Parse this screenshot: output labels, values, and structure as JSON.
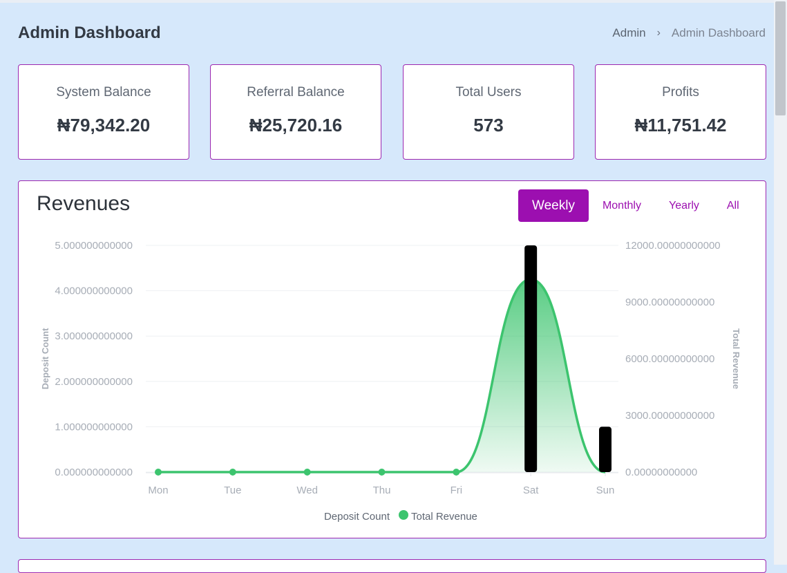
{
  "header": {
    "title": "Admin Dashboard",
    "breadcrumb": [
      "Admin",
      "Admin Dashboard"
    ],
    "breadcrumb_separator": "›"
  },
  "stats": [
    {
      "label": "System Balance",
      "value": "₦79,342.20"
    },
    {
      "label": "Referral Balance",
      "value": "₦25,720.16"
    },
    {
      "label": "Total Users",
      "value": "573"
    },
    {
      "label": "Profits",
      "value": "₦11,751.42"
    }
  ],
  "revenues": {
    "title": "Revenues",
    "tabs": [
      {
        "label": "Weekly",
        "active": true
      },
      {
        "label": "Monthly",
        "active": false
      },
      {
        "label": "Yearly",
        "active": false
      },
      {
        "label": "All",
        "active": false
      }
    ]
  },
  "colors": {
    "accent": "#9c0fb0",
    "revenue_line": "#3cc46e",
    "deposit_bar": "#000000"
  },
  "chart_data": {
    "type": "bar",
    "categories": [
      "Mon",
      "Tue",
      "Wed",
      "Thu",
      "Fri",
      "Sat",
      "Sun"
    ],
    "series": [
      {
        "name": "Deposit Count",
        "type": "bar",
        "axis": "left",
        "values": [
          0,
          0,
          0,
          0,
          0,
          5,
          1
        ]
      },
      {
        "name": "Total Revenue",
        "type": "area",
        "axis": "right",
        "values": [
          0,
          0,
          0,
          0,
          0,
          10200,
          0
        ]
      }
    ],
    "ylabel": "Deposit Count",
    "y2label": "Total Revenue",
    "ylim": [
      0,
      5
    ],
    "y2lim": [
      0,
      12000
    ],
    "yticks": [
      "0.000000000000",
      "1.000000000000",
      "2.000000000000",
      "3.000000000000",
      "4.000000000000",
      "5.000000000000"
    ],
    "y2ticks": [
      "0.00000000000",
      "3000.00000000000",
      "6000.00000000000",
      "9000.00000000000",
      "12000.00000000000"
    ],
    "grid": true,
    "legend": "bottom"
  }
}
